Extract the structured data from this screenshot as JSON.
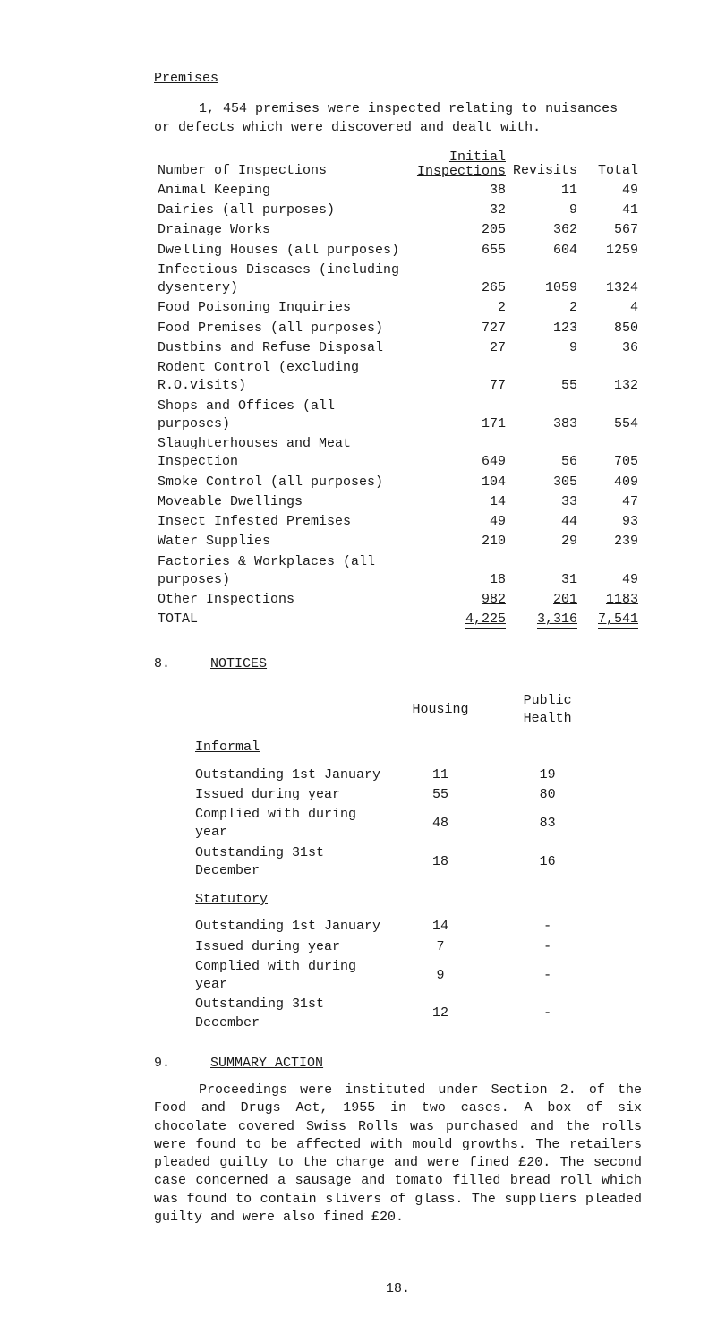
{
  "premises": {
    "heading": "Premises",
    "intro": "1, 454 premises were inspected relating to nuisances or defects which were discovered and dealt with.",
    "table": {
      "col_labels": {
        "desc": "Number of Inspections",
        "initial_line1": "Initial",
        "initial_line2": "Inspections",
        "revisits": "Revisits",
        "total": "Total"
      },
      "rows": [
        {
          "label": "Animal Keeping",
          "a": "38",
          "b": "11",
          "c": "49"
        },
        {
          "label": "Dairies (all purposes)",
          "a": "32",
          "b": "9",
          "c": "41"
        },
        {
          "label": "Drainage Works",
          "a": "205",
          "b": "362",
          "c": "567"
        },
        {
          "label": "Dwelling Houses (all purposes)",
          "a": "655",
          "b": "604",
          "c": "1259"
        },
        {
          "label": "Infectious Diseases (including dysentery)",
          "a": "265",
          "b": "1059",
          "c": "1324"
        },
        {
          "label": "Food Poisoning Inquiries",
          "a": "2",
          "b": "2",
          "c": "4"
        },
        {
          "label": "Food Premises (all purposes)",
          "a": "727",
          "b": "123",
          "c": "850"
        },
        {
          "label": "Dustbins and Refuse Disposal",
          "a": "27",
          "b": "9",
          "c": "36"
        },
        {
          "label": "Rodent Control (excluding R.O.visits)",
          "a": "77",
          "b": "55",
          "c": "132"
        },
        {
          "label": "Shops and Offices (all purposes)",
          "a": "171",
          "b": "383",
          "c": "554"
        },
        {
          "label": "Slaughterhouses and Meat Inspection",
          "a": "649",
          "b": "56",
          "c": "705"
        },
        {
          "label": "Smoke Control (all purposes)",
          "a": "104",
          "b": "305",
          "c": "409"
        },
        {
          "label": "Moveable Dwellings",
          "a": "14",
          "b": "33",
          "c": "47"
        },
        {
          "label": "Insect Infested Premises",
          "a": "49",
          "b": "44",
          "c": "93"
        },
        {
          "label": "Water Supplies",
          "a": "210",
          "b": "29",
          "c": "239"
        },
        {
          "label": "Factories & Workplaces (all purposes)",
          "a": "18",
          "b": "31",
          "c": "49"
        }
      ],
      "other": {
        "label": "Other Inspections",
        "a": "982",
        "b": "201",
        "c": "1183"
      },
      "total": {
        "label": "TOTAL",
        "a": "4,225",
        "b": "3,316",
        "c": "7,541"
      }
    }
  },
  "notices": {
    "heading_num": "8.",
    "heading": "NOTICES",
    "col_housing": "Housing",
    "col_public": "Public Health",
    "informal_heading": "Informal",
    "informal_rows": [
      {
        "label": "Outstanding 1st January",
        "a": "11",
        "b": "19"
      },
      {
        "label": "Issued during year",
        "a": "55",
        "b": "80"
      },
      {
        "label": "Complied with during year",
        "a": "48",
        "b": "83"
      },
      {
        "label": "Outstanding 31st December",
        "a": "18",
        "b": "16"
      }
    ],
    "statutory_heading": "Statutory",
    "statutory_rows": [
      {
        "label": "Outstanding 1st January",
        "a": "14",
        "b": "-"
      },
      {
        "label": "Issued during year",
        "a": "7",
        "b": "-"
      },
      {
        "label": "Complied with during year",
        "a": "9",
        "b": "-"
      },
      {
        "label": "Outstanding 31st December",
        "a": "12",
        "b": "-"
      }
    ]
  },
  "summary": {
    "heading_num": "9.",
    "heading": "SUMMARY ACTION",
    "para": "Proceedings were instituted under Section 2. of the Food and Drugs Act, 1955 in two cases.  A box of six chocolate covered Swiss Rolls was purchased and the rolls were found to be affected with mould growths. The retailers pleaded guilty to the charge and were fined £20.  The second case concerned a sausage and tomato filled bread roll which was found to contain slivers of glass.  The suppliers pleaded guilty and were also fined £20."
  },
  "page_number": "18."
}
